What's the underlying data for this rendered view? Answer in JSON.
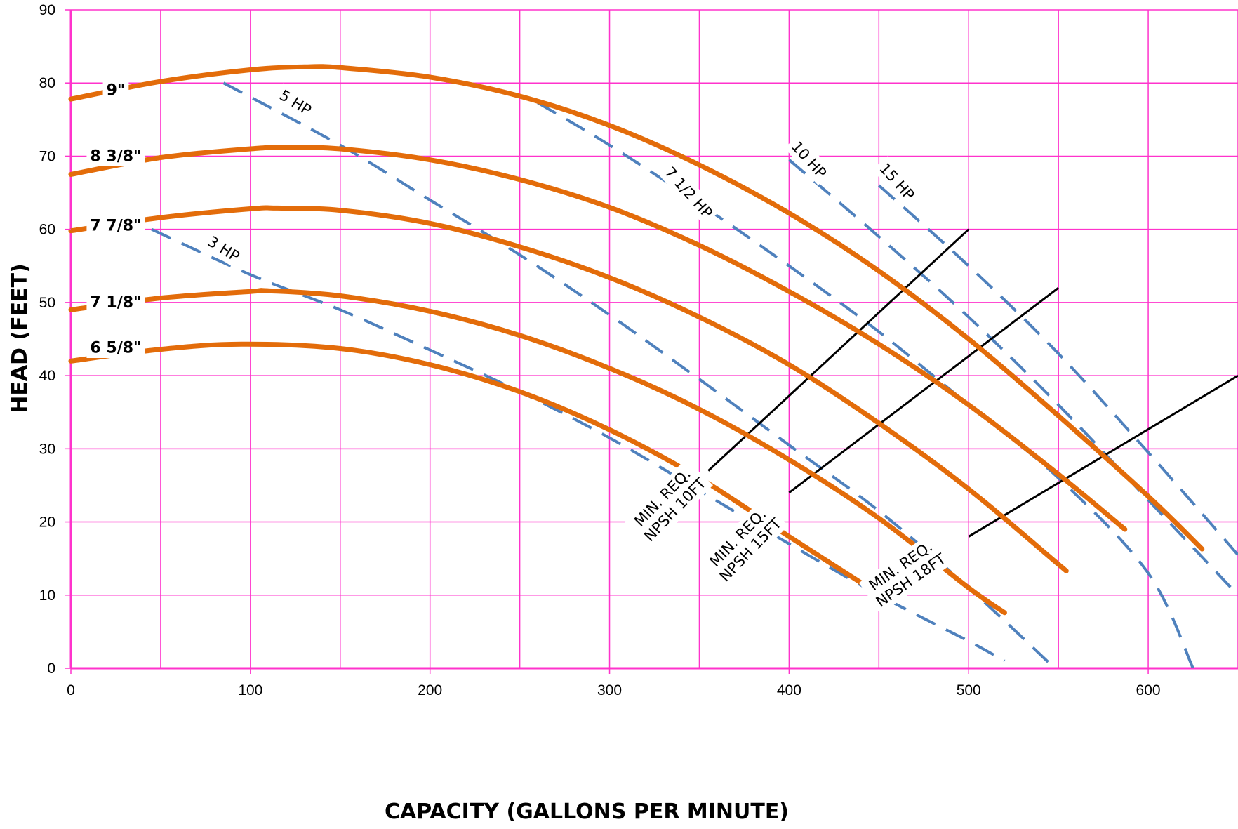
{
  "chart_data": {
    "type": "line",
    "title": "",
    "xlabel": "CAPACITY (GALLONS PER MINUTE)",
    "ylabel": "HEAD (FEET)",
    "xlim": [
      0,
      650
    ],
    "ylim": [
      0,
      90
    ],
    "x_ticks": [
      0,
      100,
      200,
      300,
      400,
      500,
      600
    ],
    "y_ticks": [
      0,
      10,
      20,
      30,
      40,
      50,
      60,
      70,
      80,
      90
    ],
    "x_minor_grid_step": 50,
    "grid": true,
    "grid_color": "#ff33cc",
    "impeller_color": "#e36c0a",
    "hp_color": "#4f81bd",
    "npsh_color": "#000000",
    "impeller_curves": [
      {
        "label": "9\"",
        "label_x": 25,
        "label_y": 79,
        "points": [
          [
            0,
            77.8
          ],
          [
            50,
            80.2
          ],
          [
            100,
            81.8
          ],
          [
            130,
            82.2
          ],
          [
            150,
            82.1
          ],
          [
            200,
            80.8
          ],
          [
            250,
            78.2
          ],
          [
            300,
            74.2
          ],
          [
            350,
            68.8
          ],
          [
            400,
            62.2
          ],
          [
            450,
            54.3
          ],
          [
            500,
            45
          ],
          [
            550,
            34.5
          ],
          [
            600,
            23.5
          ],
          [
            630,
            16.3
          ]
        ]
      },
      {
        "label": "8 3/8\"",
        "label_x": 25,
        "label_y": 70,
        "points": [
          [
            0,
            67.5
          ],
          [
            50,
            69.8
          ],
          [
            100,
            71
          ],
          [
            120,
            71.2
          ],
          [
            150,
            71
          ],
          [
            200,
            69.5
          ],
          [
            250,
            66.8
          ],
          [
            300,
            63
          ],
          [
            350,
            57.8
          ],
          [
            400,
            51.5
          ],
          [
            450,
            44.3
          ],
          [
            500,
            36
          ],
          [
            550,
            26.5
          ],
          [
            587,
            19
          ]
        ]
      },
      {
        "label": "7 7/8\"",
        "label_x": 25,
        "label_y": 60.5,
        "points": [
          [
            0,
            59.8
          ],
          [
            50,
            61.6
          ],
          [
            100,
            62.8
          ],
          [
            115,
            62.9
          ],
          [
            150,
            62.6
          ],
          [
            200,
            60.8
          ],
          [
            250,
            57.6
          ],
          [
            300,
            53.4
          ],
          [
            350,
            48
          ],
          [
            400,
            41.5
          ],
          [
            450,
            33.5
          ],
          [
            500,
            24.5
          ],
          [
            550,
            14.2
          ],
          [
            552,
            13.8
          ]
        ]
      },
      {
        "label": "7 1/8\"",
        "label_x": 25,
        "label_y": 50,
        "points": [
          [
            0,
            49
          ],
          [
            50,
            50.6
          ],
          [
            100,
            51.5
          ],
          [
            110,
            51.6
          ],
          [
            150,
            50.9
          ],
          [
            200,
            48.8
          ],
          [
            250,
            45.5
          ],
          [
            300,
            41
          ],
          [
            350,
            35.4
          ],
          [
            400,
            28.5
          ],
          [
            450,
            20.5
          ],
          [
            500,
            11
          ],
          [
            520,
            7.6
          ]
        ]
      },
      {
        "label": "6 5/8\"",
        "label_x": 25,
        "label_y": 43.8,
        "points": [
          [
            0,
            42
          ],
          [
            50,
            43.6
          ],
          [
            95,
            44.3
          ],
          [
            150,
            43.7
          ],
          [
            200,
            41.5
          ],
          [
            250,
            37.8
          ],
          [
            300,
            32.6
          ],
          [
            350,
            26
          ],
          [
            400,
            18
          ],
          [
            440,
            11.7
          ]
        ]
      }
    ],
    "hp_curves": [
      {
        "label": "3 HP",
        "label_x": 85,
        "label_y": 57.3,
        "label_angle": 32,
        "points": [
          [
            45,
            60
          ],
          [
            100,
            53.8
          ],
          [
            150,
            49
          ],
          [
            200,
            43.5
          ],
          [
            250,
            37.8
          ],
          [
            300,
            31.5
          ],
          [
            350,
            24.3
          ],
          [
            400,
            17
          ],
          [
            450,
            10
          ],
          [
            500,
            3.7
          ],
          [
            520,
            1
          ]
        ]
      },
      {
        "label": "5 HP",
        "label_x": 125,
        "label_y": 77.3,
        "label_angle": 32,
        "points": [
          [
            85,
            80
          ],
          [
            150,
            71.5
          ],
          [
            200,
            64
          ],
          [
            250,
            56.5
          ],
          [
            300,
            48.3
          ],
          [
            350,
            39.5
          ],
          [
            400,
            30.5
          ],
          [
            450,
            21.5
          ],
          [
            500,
            11
          ],
          [
            548,
            0
          ]
        ]
      },
      {
        "label": "7 1/2 HP",
        "label_x": 344,
        "label_y": 65,
        "label_angle": 48,
        "points": [
          [
            260,
            77.3
          ],
          [
            300,
            71.5
          ],
          [
            350,
            63.5
          ],
          [
            400,
            55
          ],
          [
            450,
            46
          ],
          [
            500,
            36
          ],
          [
            550,
            26
          ],
          [
            600,
            13
          ],
          [
            625,
            0
          ]
        ]
      },
      {
        "label": "10 HP",
        "label_x": 411,
        "label_y": 69.5,
        "label_angle": 48,
        "points": [
          [
            400,
            69.5
          ],
          [
            450,
            59
          ],
          [
            500,
            48
          ],
          [
            550,
            36
          ],
          [
            600,
            23
          ],
          [
            650,
            10
          ]
        ]
      },
      {
        "label": "15 HP",
        "label_x": 460,
        "label_y": 66.5,
        "label_angle": 48,
        "points": [
          [
            450,
            66
          ],
          [
            500,
            55
          ],
          [
            550,
            43
          ],
          [
            600,
            29.5
          ],
          [
            650,
            15.5
          ]
        ]
      }
    ],
    "npsh_lines": [
      {
        "label_line1": "MIN. REQ.",
        "label_line2": "NPSH 10FT",
        "label_x": 333,
        "label_y": 22.5,
        "label_angle": -46,
        "points": [
          [
            355,
            27
          ],
          [
            500,
            60
          ]
        ]
      },
      {
        "label_line1": "MIN. REQ.",
        "label_line2": "NPSH 15FT",
        "label_x": 375,
        "label_y": 17,
        "label_angle": -46,
        "points": [
          [
            400,
            24
          ],
          [
            550,
            52
          ]
        ]
      },
      {
        "label_line1": "MIN. REQ.",
        "label_line2": "NPSH 18FT",
        "label_x": 465,
        "label_y": 13,
        "label_angle": -35,
        "points": [
          [
            500,
            18
          ],
          [
            650,
            40
          ]
        ]
      }
    ]
  }
}
